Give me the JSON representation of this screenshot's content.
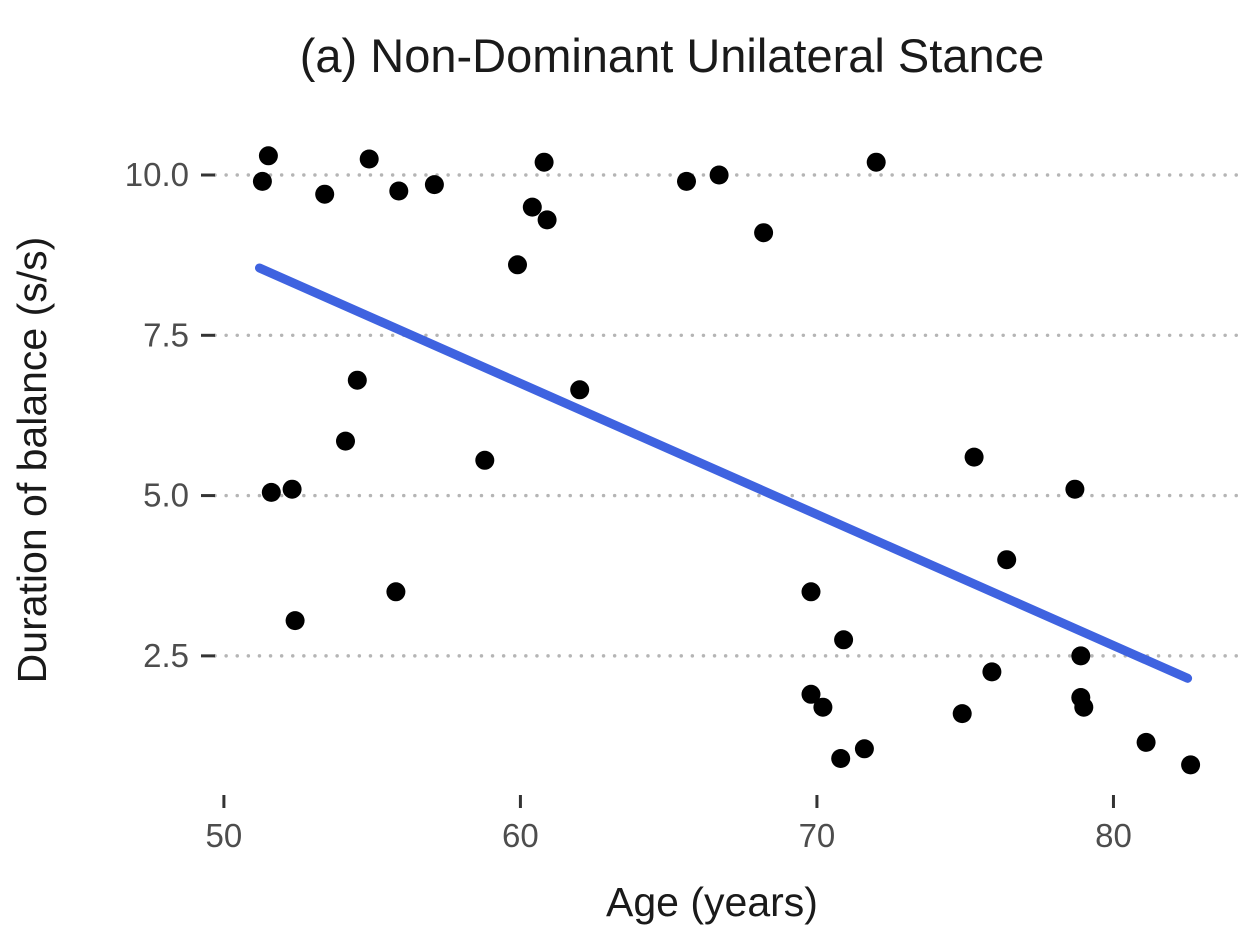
{
  "figure": {
    "background_color": "#ffffff"
  },
  "chart_data": {
    "type": "scatter",
    "title": "(a) Non-Dominant Unilateral Stance",
    "xlabel": "Age (years)",
    "ylabel": "Duration of balance (s/s)",
    "xlim": [
      49.7,
      84.2
    ],
    "ylim": [
      0.33,
      10.78
    ],
    "xticks": [
      {
        "value": 50,
        "label": "50"
      },
      {
        "value": 60,
        "label": "60"
      },
      {
        "value": 70,
        "label": "70"
      },
      {
        "value": 80,
        "label": "80"
      }
    ],
    "yticks": [
      {
        "value": 2.5,
        "label": "2.5"
      },
      {
        "value": 5.0,
        "label": "5.0"
      },
      {
        "value": 7.5,
        "label": "7.5"
      },
      {
        "value": 10.0,
        "label": "10.0"
      }
    ],
    "grid": "horizontal-dotted",
    "grid_color": "#b5b5b5",
    "tick_color": "#333333",
    "point_color": "#000000",
    "line_color": "#3f63e0",
    "legend": "none",
    "points": [
      [
        51.5,
        10.3
      ],
      [
        51.3,
        9.9
      ],
      [
        53.4,
        9.7
      ],
      [
        54.9,
        10.25
      ],
      [
        55.9,
        9.75
      ],
      [
        57.1,
        9.85
      ],
      [
        59.9,
        8.6
      ],
      [
        60.4,
        9.5
      ],
      [
        60.8,
        10.2
      ],
      [
        60.9,
        9.3
      ],
      [
        62.0,
        6.65
      ],
      [
        65.6,
        9.9
      ],
      [
        66.7,
        10.0
      ],
      [
        68.2,
        9.1
      ],
      [
        72.0,
        10.2
      ],
      [
        54.5,
        6.8
      ],
      [
        54.1,
        5.85
      ],
      [
        58.8,
        5.55
      ],
      [
        51.6,
        5.05
      ],
      [
        52.3,
        5.1
      ],
      [
        75.3,
        5.6
      ],
      [
        78.7,
        5.1
      ],
      [
        55.8,
        3.5
      ],
      [
        52.4,
        3.05
      ],
      [
        69.8,
        3.5
      ],
      [
        70.9,
        2.75
      ],
      [
        76.4,
        4.0
      ],
      [
        75.9,
        2.25
      ],
      [
        78.9,
        2.5
      ],
      [
        69.8,
        1.9
      ],
      [
        70.2,
        1.7
      ],
      [
        74.9,
        1.6
      ],
      [
        78.9,
        1.85
      ],
      [
        79.0,
        1.7
      ],
      [
        70.8,
        0.9
      ],
      [
        71.6,
        1.05
      ],
      [
        81.1,
        1.15
      ],
      [
        82.6,
        0.8
      ]
    ],
    "regression_line": {
      "x1": 51.2,
      "y1": 8.55,
      "x2": 82.5,
      "y2": 2.15
    }
  }
}
